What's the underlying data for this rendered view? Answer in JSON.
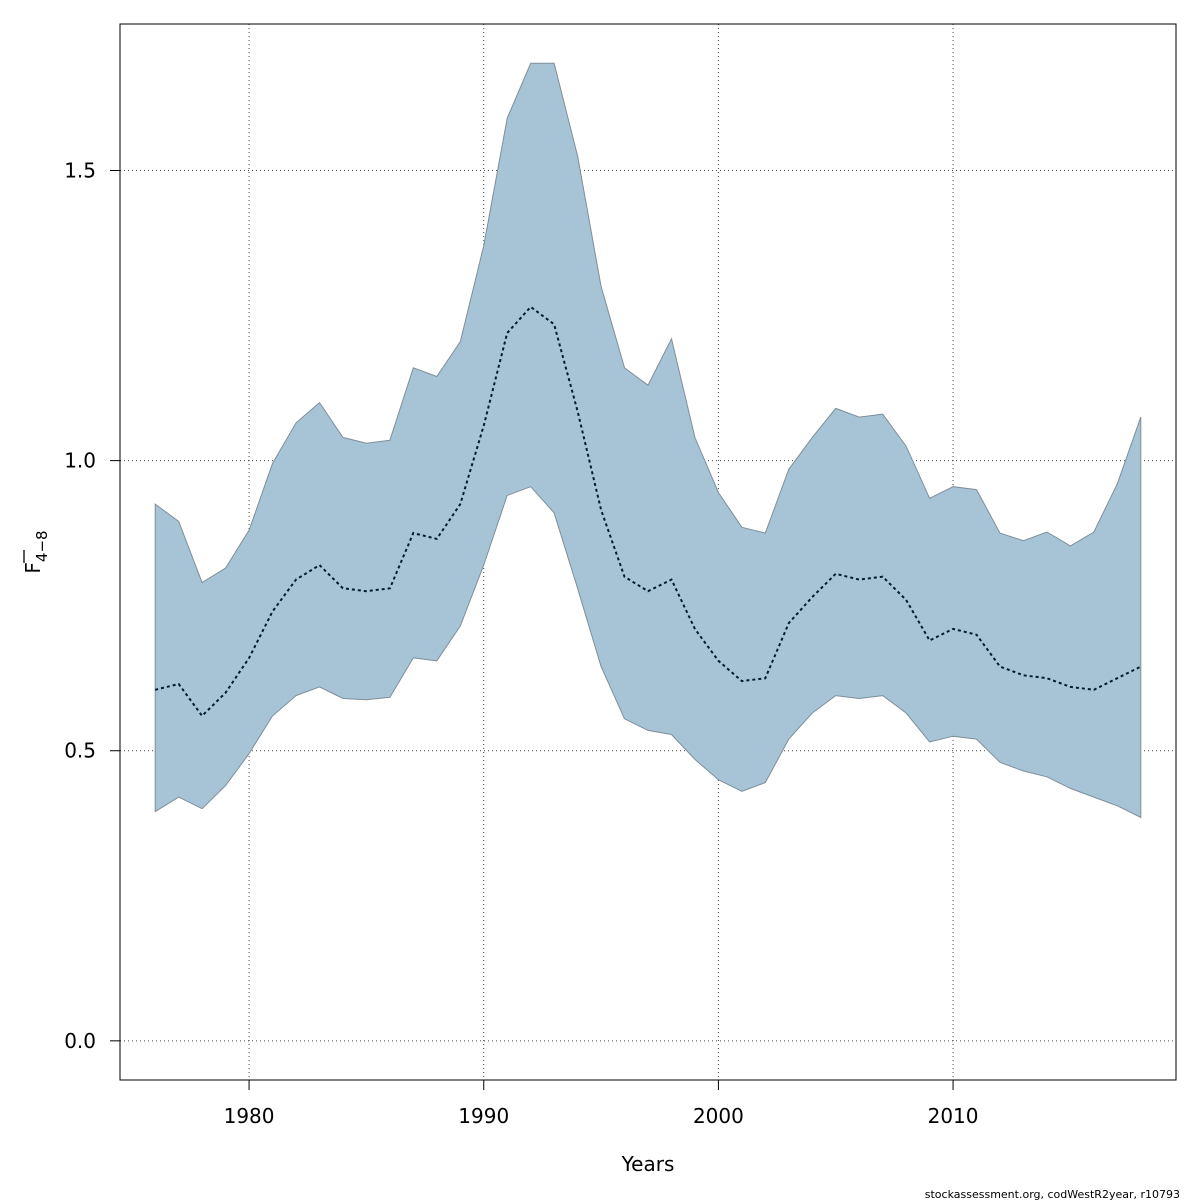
{
  "chart_data": {
    "type": "area",
    "xlabel": "Years",
    "ylabel": "F",
    "ylabel_sub": "4−8",
    "xlim": [
      1974.5,
      2019.5
    ],
    "ylim": [
      -0.0675,
      1.7525
    ],
    "xticks": [
      1980,
      1990,
      2000,
      2010
    ],
    "yticks": [
      0.0,
      0.5,
      1.0,
      1.5
    ],
    "ytick_labels": [
      "0.0",
      "0.5",
      "1.0",
      "1.5"
    ],
    "grid": true,
    "band_color": "#a6c4d6",
    "band_edge_color": "#7f8e99",
    "line_color": "#001a33",
    "credit": "stockassessment.org, codWestR2year, r10793",
    "x": [
      1976,
      1977,
      1978,
      1979,
      1980,
      1981,
      1982,
      1983,
      1984,
      1985,
      1986,
      1987,
      1988,
      1989,
      1990,
      1991,
      1992,
      1993,
      1994,
      1995,
      1996,
      1997,
      1998,
      1999,
      2000,
      2001,
      2002,
      2003,
      2004,
      2005,
      2006,
      2007,
      2008,
      2009,
      2010,
      2011,
      2012,
      2013,
      2014,
      2015,
      2016,
      2017,
      2018
    ],
    "series": [
      {
        "role": "estimate",
        "values": [
          0.605,
          0.615,
          0.56,
          0.6,
          0.66,
          0.74,
          0.795,
          0.82,
          0.78,
          0.775,
          0.78,
          0.875,
          0.865,
          0.925,
          1.06,
          1.22,
          1.265,
          1.235,
          1.085,
          0.915,
          0.8,
          0.775,
          0.795,
          0.71,
          0.655,
          0.62,
          0.625,
          0.72,
          0.765,
          0.805,
          0.795,
          0.8,
          0.76,
          0.69,
          0.71,
          0.7,
          0.645,
          0.63,
          0.625,
          0.61,
          0.605,
          0.625,
          0.645
        ]
      },
      {
        "role": "upper",
        "values": [
          0.925,
          0.895,
          0.79,
          0.815,
          0.88,
          0.995,
          1.065,
          1.1,
          1.04,
          1.03,
          1.035,
          1.16,
          1.145,
          1.205,
          1.37,
          1.59,
          1.685,
          1.685,
          1.525,
          1.3,
          1.16,
          1.13,
          1.21,
          1.04,
          0.945,
          0.885,
          0.875,
          0.985,
          1.04,
          1.09,
          1.075,
          1.08,
          1.025,
          0.935,
          0.955,
          0.95,
          0.875,
          0.862,
          0.877,
          0.853,
          0.877,
          0.96,
          1.075
        ]
      },
      {
        "role": "lower",
        "values": [
          0.395,
          0.42,
          0.4,
          0.44,
          0.495,
          0.56,
          0.595,
          0.61,
          0.59,
          0.588,
          0.592,
          0.66,
          0.655,
          0.715,
          0.82,
          0.94,
          0.955,
          0.91,
          0.78,
          0.645,
          0.555,
          0.535,
          0.528,
          0.485,
          0.45,
          0.43,
          0.445,
          0.52,
          0.565,
          0.595,
          0.59,
          0.595,
          0.565,
          0.515,
          0.525,
          0.52,
          0.48,
          0.465,
          0.455,
          0.435,
          0.42,
          0.405,
          0.385
        ]
      }
    ]
  }
}
